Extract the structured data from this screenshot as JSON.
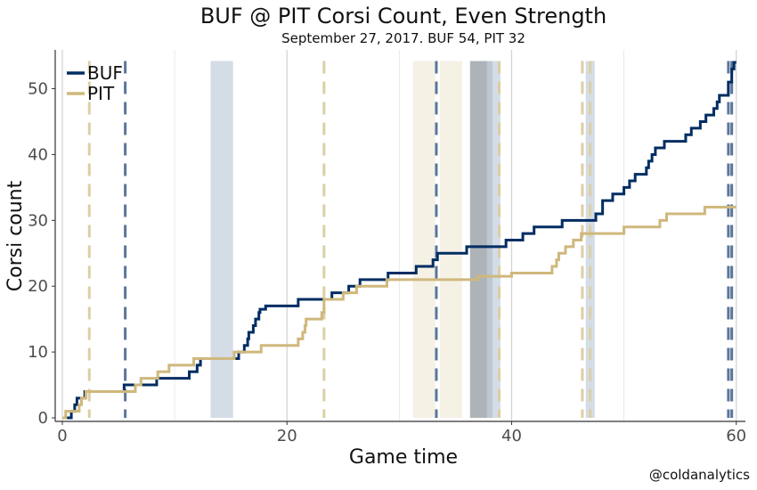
{
  "chart_data": {
    "type": "line",
    "title": "BUF @ PIT Corsi Count, Even Strength",
    "subtitle": "September 27, 2017. BUF 54, PIT 32",
    "xlabel": "Game time",
    "ylabel": "Corsi count",
    "xlim": [
      0,
      60.5
    ],
    "ylim": [
      0,
      54
    ],
    "x_ticks": [
      0,
      20,
      40,
      60
    ],
    "y_ticks": [
      0,
      10,
      20,
      30,
      40,
      50
    ],
    "grid": "vertical-major-and-minor",
    "legend_position": "top-left",
    "credit": "@coldanalytics",
    "colors": {
      "BUF": "#002d62",
      "PIT": "#cfb87c"
    },
    "series": [
      {
        "name": "BUF",
        "color": "#002d62",
        "steps": [
          [
            0,
            0
          ],
          [
            0.8,
            1
          ],
          [
            1.1,
            2
          ],
          [
            1.3,
            3
          ],
          [
            2.0,
            4
          ],
          [
            5.5,
            5
          ],
          [
            8.4,
            6
          ],
          [
            11.3,
            7
          ],
          [
            12.0,
            8
          ],
          [
            12.3,
            9
          ],
          [
            15.7,
            10
          ],
          [
            16.2,
            11
          ],
          [
            16.5,
            12
          ],
          [
            16.6,
            13
          ],
          [
            17.0,
            14
          ],
          [
            17.2,
            15
          ],
          [
            17.5,
            16
          ],
          [
            17.6,
            16.5
          ],
          [
            18.1,
            17
          ],
          [
            19.9,
            17
          ],
          [
            21.0,
            18
          ],
          [
            23.3,
            18
          ],
          [
            24.0,
            19
          ],
          [
            25.5,
            20
          ],
          [
            26.5,
            21
          ],
          [
            29.0,
            22
          ],
          [
            31.5,
            23
          ],
          [
            33.0,
            24
          ],
          [
            33.4,
            25
          ],
          [
            36.0,
            26
          ],
          [
            39.5,
            27
          ],
          [
            41.0,
            28
          ],
          [
            42.0,
            29
          ],
          [
            44.5,
            30
          ],
          [
            47.5,
            31
          ],
          [
            48.1,
            33
          ],
          [
            49.0,
            34
          ],
          [
            50.0,
            35
          ],
          [
            50.5,
            36
          ],
          [
            51.0,
            37
          ],
          [
            52.0,
            38
          ],
          [
            52.2,
            39
          ],
          [
            52.5,
            40
          ],
          [
            52.8,
            41
          ],
          [
            53.6,
            42
          ],
          [
            55.5,
            43
          ],
          [
            56.0,
            44
          ],
          [
            56.8,
            45
          ],
          [
            57.3,
            46
          ],
          [
            58.0,
            47
          ],
          [
            58.3,
            48
          ],
          [
            58.5,
            49
          ],
          [
            59.3,
            51
          ],
          [
            59.6,
            53
          ],
          [
            59.8,
            54
          ],
          [
            60.0,
            54
          ]
        ]
      },
      {
        "name": "PIT",
        "color": "#cfb87c",
        "steps": [
          [
            0,
            0
          ],
          [
            0.3,
            1
          ],
          [
            1.5,
            2
          ],
          [
            1.7,
            3
          ],
          [
            2.1,
            4
          ],
          [
            5.5,
            4
          ],
          [
            6.5,
            5
          ],
          [
            7.0,
            6
          ],
          [
            8.5,
            7
          ],
          [
            9.5,
            8
          ],
          [
            11.7,
            9
          ],
          [
            15.3,
            10
          ],
          [
            17.7,
            11
          ],
          [
            21.0,
            12
          ],
          [
            21.4,
            13
          ],
          [
            21.6,
            14
          ],
          [
            21.7,
            15
          ],
          [
            23.1,
            16
          ],
          [
            23.3,
            18
          ],
          [
            25.0,
            19
          ],
          [
            26.2,
            20
          ],
          [
            28.9,
            21
          ],
          [
            36.2,
            21
          ],
          [
            37.0,
            21.5
          ],
          [
            40.0,
            22
          ],
          [
            43.6,
            23
          ],
          [
            44.0,
            24
          ],
          [
            44.2,
            25
          ],
          [
            44.8,
            26
          ],
          [
            45.5,
            27
          ],
          [
            46.2,
            28
          ],
          [
            50.0,
            29
          ],
          [
            53.2,
            30
          ],
          [
            53.8,
            31
          ],
          [
            57.2,
            32
          ],
          [
            60.0,
            32
          ]
        ]
      }
    ],
    "goals": [
      {
        "team": "PIT",
        "time": 2.4
      },
      {
        "team": "BUF",
        "time": 5.6
      },
      {
        "team": "PIT",
        "time": 23.3
      },
      {
        "team": "BUF",
        "time": 33.3
      },
      {
        "team": "PIT",
        "time": 38.9
      },
      {
        "team": "PIT",
        "time": 46.3
      },
      {
        "team": "PIT",
        "time": 47.0
      },
      {
        "team": "BUF",
        "time": 59.3
      },
      {
        "team": "BUF",
        "time": 59.6
      }
    ],
    "penalties": [
      {
        "team": "BUF",
        "start": 13.2,
        "end": 15.2
      },
      {
        "team": "PIT",
        "start": 31.2,
        "end": 33.2
      },
      {
        "team": "PIT",
        "start": 33.6,
        "end": 35.6
      },
      {
        "team": "BOTH",
        "start": 36.3,
        "end": 38.3
      },
      {
        "team": "BUF",
        "start": 37.8,
        "end": 39.0
      },
      {
        "team": "BUF",
        "start": 46.6,
        "end": 47.4
      }
    ]
  }
}
